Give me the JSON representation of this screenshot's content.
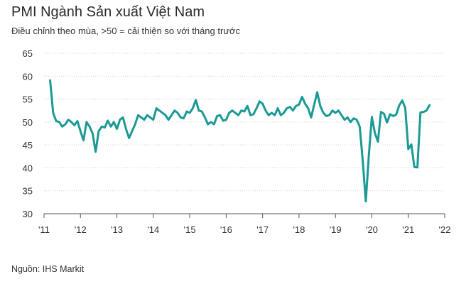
{
  "header": {
    "title": "PMI Ngành Sản xuất Việt Nam",
    "subtitle": "Điều chỉnh theo mùa, >50 = cải thiện so với tháng trước"
  },
  "footer": {
    "source": "Nguồn:  IHS Markit"
  },
  "colors": {
    "line": "#1a9a95",
    "axis": "#555555",
    "grid": "#d0d0d0"
  },
  "chart_data": {
    "type": "line",
    "title": "PMI Ngành Sản xuất Việt Nam",
    "xlabel": "",
    "ylabel": "",
    "ylim": [
      30,
      65
    ],
    "yticks": [
      30,
      35,
      40,
      45,
      50,
      55,
      60,
      65
    ],
    "xtick_labels": [
      "'11",
      "'12",
      "'13",
      "'14",
      "'15",
      "'16",
      "'17",
      "'18",
      "'19",
      "'20",
      "'21",
      "'22"
    ],
    "x_start": "2011-03",
    "frequency": "monthly",
    "series": [
      {
        "name": "PMI",
        "values": [
          59.1,
          52.0,
          50.2,
          50.0,
          49.0,
          49.5,
          50.5,
          50.0,
          49.3,
          50.2,
          48.0,
          46.0,
          50.0,
          49.0,
          47.5,
          43.5,
          48.0,
          49.0,
          48.8,
          50.3,
          49.0,
          50.0,
          48.5,
          50.5,
          51.0,
          48.5,
          46.5,
          48.0,
          49.5,
          51.5,
          51.0,
          50.5,
          51.5,
          51.0,
          50.5,
          53.0,
          52.5,
          52.0,
          51.5,
          50.5,
          51.5,
          52.5,
          52.0,
          51.0,
          50.8,
          52.3,
          52.0,
          53.0,
          54.8,
          52.5,
          52.3,
          51.0,
          49.5,
          50.0,
          49.5,
          51.3,
          51.5,
          50.3,
          50.5,
          52.0,
          52.5,
          52.0,
          51.5,
          52.5,
          52.3,
          53.5,
          51.5,
          51.7,
          53.0,
          54.5,
          54.0,
          52.5,
          51.5,
          52.0,
          51.5,
          53.0,
          51.5,
          52.0,
          53.0,
          53.3,
          52.5,
          53.5,
          53.8,
          55.5,
          54.0,
          53.0,
          51.0,
          53.8,
          56.5,
          53.5,
          52.0,
          51.3,
          51.5,
          52.5,
          52.0,
          52.5,
          51.5,
          50.5,
          51.0,
          50.0,
          50.8,
          50.5,
          49.0,
          41.5,
          32.7,
          42.7,
          51.1,
          47.6,
          45.7,
          52.2,
          51.8,
          49.9,
          51.7,
          51.3,
          51.6,
          53.6,
          54.7,
          53.1,
          44.1,
          45.1,
          40.2,
          40.1,
          52.1,
          52.2,
          52.5,
          53.7
        ]
      }
    ]
  }
}
